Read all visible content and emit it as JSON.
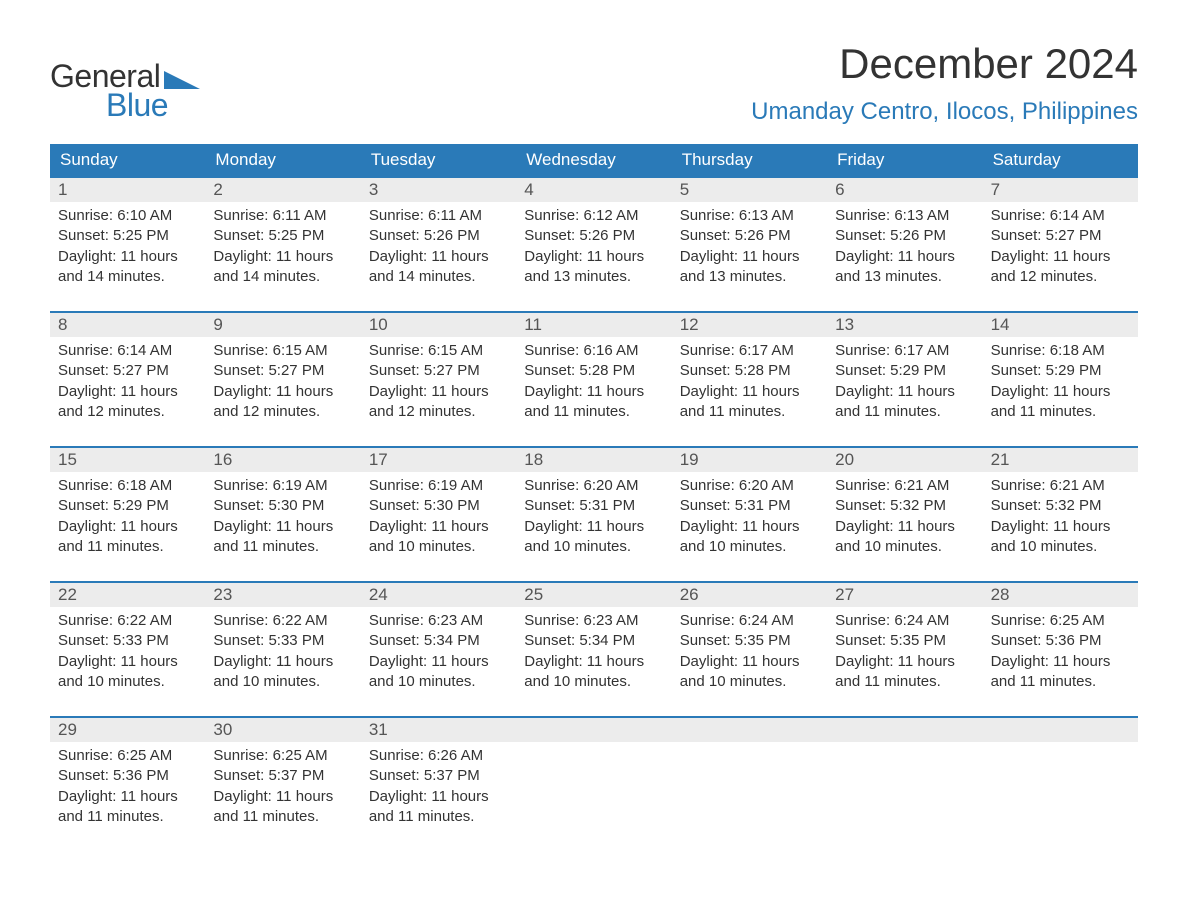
{
  "logo": {
    "text1": "General",
    "text2": "Blue"
  },
  "title": "December 2024",
  "location": "Umanday Centro, Ilocos, Philippines",
  "weekdays": [
    "Sunday",
    "Monday",
    "Tuesday",
    "Wednesday",
    "Thursday",
    "Friday",
    "Saturday"
  ],
  "colors": {
    "accent": "#2a7ab8",
    "day_bar": "#ececec",
    "text": "#333333",
    "background": "#ffffff"
  },
  "weeks": [
    [
      {
        "n": "1",
        "sunrise": "Sunrise: 6:10 AM",
        "sunset": "Sunset: 5:25 PM",
        "d1": "Daylight: 11 hours",
        "d2": "and 14 minutes."
      },
      {
        "n": "2",
        "sunrise": "Sunrise: 6:11 AM",
        "sunset": "Sunset: 5:25 PM",
        "d1": "Daylight: 11 hours",
        "d2": "and 14 minutes."
      },
      {
        "n": "3",
        "sunrise": "Sunrise: 6:11 AM",
        "sunset": "Sunset: 5:26 PM",
        "d1": "Daylight: 11 hours",
        "d2": "and 14 minutes."
      },
      {
        "n": "4",
        "sunrise": "Sunrise: 6:12 AM",
        "sunset": "Sunset: 5:26 PM",
        "d1": "Daylight: 11 hours",
        "d2": "and 13 minutes."
      },
      {
        "n": "5",
        "sunrise": "Sunrise: 6:13 AM",
        "sunset": "Sunset: 5:26 PM",
        "d1": "Daylight: 11 hours",
        "d2": "and 13 minutes."
      },
      {
        "n": "6",
        "sunrise": "Sunrise: 6:13 AM",
        "sunset": "Sunset: 5:26 PM",
        "d1": "Daylight: 11 hours",
        "d2": "and 13 minutes."
      },
      {
        "n": "7",
        "sunrise": "Sunrise: 6:14 AM",
        "sunset": "Sunset: 5:27 PM",
        "d1": "Daylight: 11 hours",
        "d2": "and 12 minutes."
      }
    ],
    [
      {
        "n": "8",
        "sunrise": "Sunrise: 6:14 AM",
        "sunset": "Sunset: 5:27 PM",
        "d1": "Daylight: 11 hours",
        "d2": "and 12 minutes."
      },
      {
        "n": "9",
        "sunrise": "Sunrise: 6:15 AM",
        "sunset": "Sunset: 5:27 PM",
        "d1": "Daylight: 11 hours",
        "d2": "and 12 minutes."
      },
      {
        "n": "10",
        "sunrise": "Sunrise: 6:15 AM",
        "sunset": "Sunset: 5:27 PM",
        "d1": "Daylight: 11 hours",
        "d2": "and 12 minutes."
      },
      {
        "n": "11",
        "sunrise": "Sunrise: 6:16 AM",
        "sunset": "Sunset: 5:28 PM",
        "d1": "Daylight: 11 hours",
        "d2": "and 11 minutes."
      },
      {
        "n": "12",
        "sunrise": "Sunrise: 6:17 AM",
        "sunset": "Sunset: 5:28 PM",
        "d1": "Daylight: 11 hours",
        "d2": "and 11 minutes."
      },
      {
        "n": "13",
        "sunrise": "Sunrise: 6:17 AM",
        "sunset": "Sunset: 5:29 PM",
        "d1": "Daylight: 11 hours",
        "d2": "and 11 minutes."
      },
      {
        "n": "14",
        "sunrise": "Sunrise: 6:18 AM",
        "sunset": "Sunset: 5:29 PM",
        "d1": "Daylight: 11 hours",
        "d2": "and 11 minutes."
      }
    ],
    [
      {
        "n": "15",
        "sunrise": "Sunrise: 6:18 AM",
        "sunset": "Sunset: 5:29 PM",
        "d1": "Daylight: 11 hours",
        "d2": "and 11 minutes."
      },
      {
        "n": "16",
        "sunrise": "Sunrise: 6:19 AM",
        "sunset": "Sunset: 5:30 PM",
        "d1": "Daylight: 11 hours",
        "d2": "and 11 minutes."
      },
      {
        "n": "17",
        "sunrise": "Sunrise: 6:19 AM",
        "sunset": "Sunset: 5:30 PM",
        "d1": "Daylight: 11 hours",
        "d2": "and 10 minutes."
      },
      {
        "n": "18",
        "sunrise": "Sunrise: 6:20 AM",
        "sunset": "Sunset: 5:31 PM",
        "d1": "Daylight: 11 hours",
        "d2": "and 10 minutes."
      },
      {
        "n": "19",
        "sunrise": "Sunrise: 6:20 AM",
        "sunset": "Sunset: 5:31 PM",
        "d1": "Daylight: 11 hours",
        "d2": "and 10 minutes."
      },
      {
        "n": "20",
        "sunrise": "Sunrise: 6:21 AM",
        "sunset": "Sunset: 5:32 PM",
        "d1": "Daylight: 11 hours",
        "d2": "and 10 minutes."
      },
      {
        "n": "21",
        "sunrise": "Sunrise: 6:21 AM",
        "sunset": "Sunset: 5:32 PM",
        "d1": "Daylight: 11 hours",
        "d2": "and 10 minutes."
      }
    ],
    [
      {
        "n": "22",
        "sunrise": "Sunrise: 6:22 AM",
        "sunset": "Sunset: 5:33 PM",
        "d1": "Daylight: 11 hours",
        "d2": "and 10 minutes."
      },
      {
        "n": "23",
        "sunrise": "Sunrise: 6:22 AM",
        "sunset": "Sunset: 5:33 PM",
        "d1": "Daylight: 11 hours",
        "d2": "and 10 minutes."
      },
      {
        "n": "24",
        "sunrise": "Sunrise: 6:23 AM",
        "sunset": "Sunset: 5:34 PM",
        "d1": "Daylight: 11 hours",
        "d2": "and 10 minutes."
      },
      {
        "n": "25",
        "sunrise": "Sunrise: 6:23 AM",
        "sunset": "Sunset: 5:34 PM",
        "d1": "Daylight: 11 hours",
        "d2": "and 10 minutes."
      },
      {
        "n": "26",
        "sunrise": "Sunrise: 6:24 AM",
        "sunset": "Sunset: 5:35 PM",
        "d1": "Daylight: 11 hours",
        "d2": "and 10 minutes."
      },
      {
        "n": "27",
        "sunrise": "Sunrise: 6:24 AM",
        "sunset": "Sunset: 5:35 PM",
        "d1": "Daylight: 11 hours",
        "d2": "and 11 minutes."
      },
      {
        "n": "28",
        "sunrise": "Sunrise: 6:25 AM",
        "sunset": "Sunset: 5:36 PM",
        "d1": "Daylight: 11 hours",
        "d2": "and 11 minutes."
      }
    ],
    [
      {
        "n": "29",
        "sunrise": "Sunrise: 6:25 AM",
        "sunset": "Sunset: 5:36 PM",
        "d1": "Daylight: 11 hours",
        "d2": "and 11 minutes."
      },
      {
        "n": "30",
        "sunrise": "Sunrise: 6:25 AM",
        "sunset": "Sunset: 5:37 PM",
        "d1": "Daylight: 11 hours",
        "d2": "and 11 minutes."
      },
      {
        "n": "31",
        "sunrise": "Sunrise: 6:26 AM",
        "sunset": "Sunset: 5:37 PM",
        "d1": "Daylight: 11 hours",
        "d2": "and 11 minutes."
      },
      {
        "empty": true
      },
      {
        "empty": true
      },
      {
        "empty": true
      },
      {
        "empty": true
      }
    ]
  ]
}
